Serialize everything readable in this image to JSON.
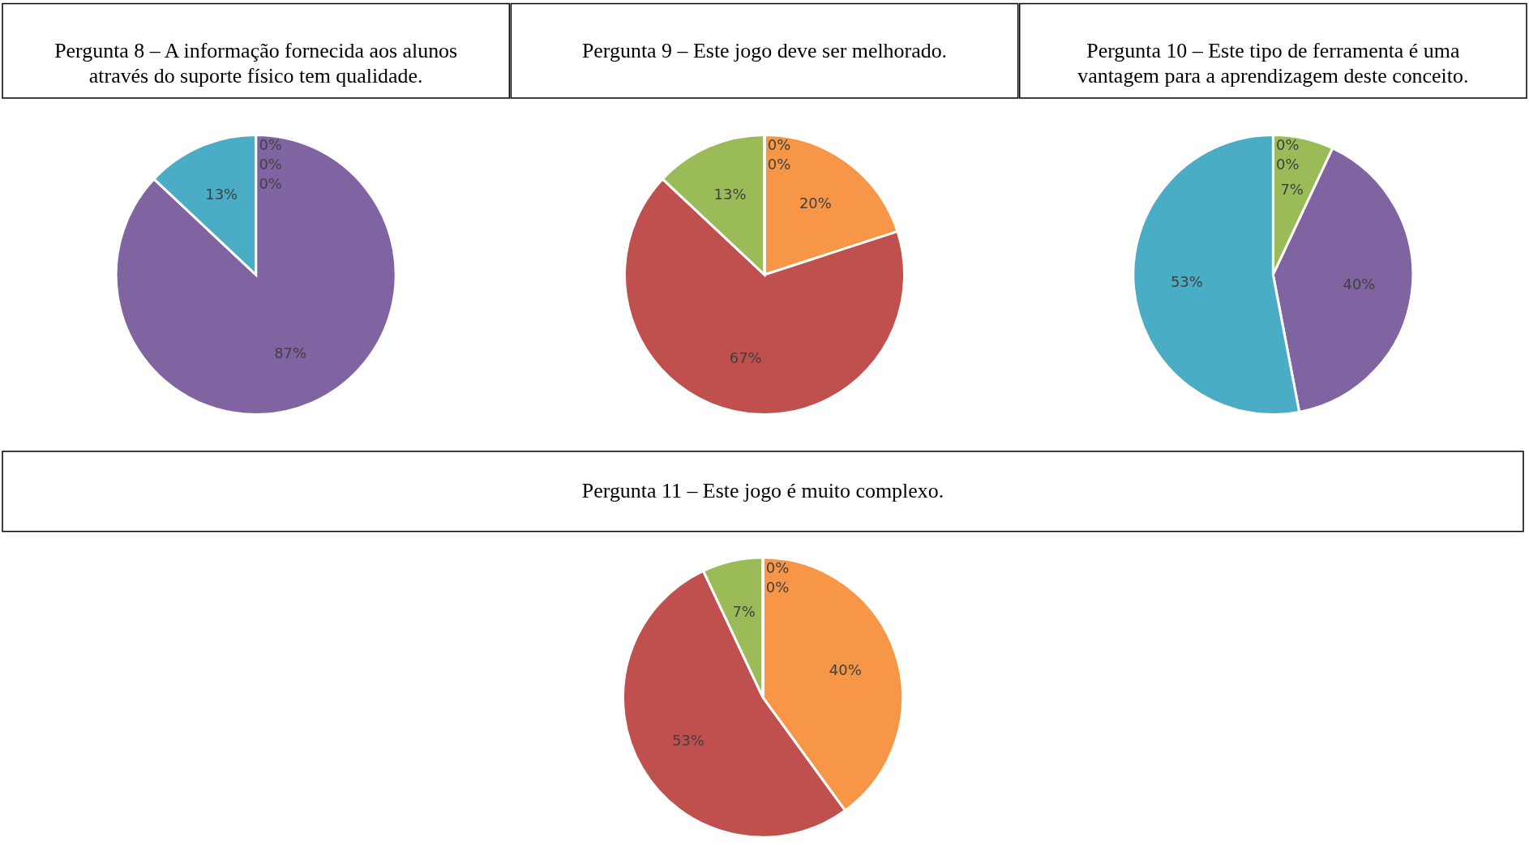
{
  "chart_data": [
    {
      "type": "pie",
      "title": "Pergunta 8 – A informação fornecida aos alunos através do suporte físico tem qualidade.",
      "categories": [
        null,
        null,
        null,
        null,
        null
      ],
      "values": [
        0,
        0,
        0,
        87,
        13
      ],
      "colors": [
        "#f79646",
        "#c0504d",
        "#9bbb59",
        "#8064a2",
        "#4bacc6"
      ],
      "value_labels": [
        "0%",
        "0%",
        "0%",
        "87%",
        "13%"
      ],
      "legend": false
    },
    {
      "type": "pie",
      "title": "Pergunta 9 – Este jogo deve ser melhorado.",
      "categories": [
        null,
        null,
        null,
        null,
        null
      ],
      "values": [
        20,
        67,
        13,
        0,
        0
      ],
      "colors": [
        "#f79646",
        "#c0504d",
        "#9bbb59",
        "#8064a2",
        "#4bacc6"
      ],
      "value_labels": [
        "20%",
        "67%",
        "13%",
        "0%",
        "0%"
      ],
      "legend": false
    },
    {
      "type": "pie",
      "title": "Pergunta 10 – Este tipo de ferramenta é uma vantagem para a aprendizagem deste conceito.",
      "categories": [
        null,
        null,
        null,
        null,
        null
      ],
      "values": [
        0,
        0,
        7,
        40,
        53
      ],
      "colors": [
        "#f79646",
        "#c0504d",
        "#9bbb59",
        "#8064a2",
        "#4bacc6"
      ],
      "value_labels": [
        "0%",
        "0%",
        "7%",
        "40%",
        "53%"
      ],
      "legend": false
    },
    {
      "type": "pie",
      "title": "Pergunta 11 – Este jogo é muito complexo.",
      "categories": [
        null,
        null,
        null,
        null,
        null
      ],
      "values": [
        40,
        53,
        7,
        0,
        0
      ],
      "colors": [
        "#f79646",
        "#c0504d",
        "#9bbb59",
        "#8064a2",
        "#4bacc6"
      ],
      "value_labels": [
        "40%",
        "53%",
        "7%",
        "0%",
        "0%"
      ],
      "legend": false
    }
  ]
}
